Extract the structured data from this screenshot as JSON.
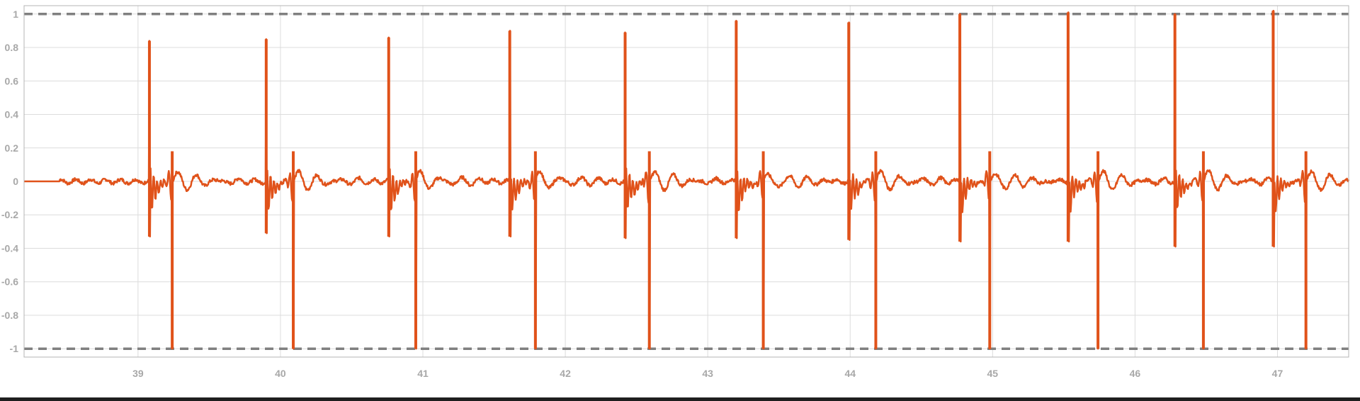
{
  "chart_data": {
    "type": "line",
    "title": "",
    "xlabel": "",
    "ylabel": "",
    "xlim": [
      38.2,
      47.5
    ],
    "ylim": [
      -1.05,
      1.05
    ],
    "x_ticks": [
      39,
      40,
      41,
      42,
      43,
      44,
      45,
      46,
      47
    ],
    "y_ticks": [
      1,
      0.8,
      0.6,
      0.4,
      0.2,
      0,
      -0.2,
      -0.4,
      -0.6,
      -0.8,
      -1
    ],
    "x_tick_labels": [
      "39",
      "40",
      "41",
      "42",
      "43",
      "44",
      "45",
      "46",
      "47"
    ],
    "y_tick_labels": [
      "1",
      "0.8",
      "0.6",
      "0.4",
      "0.2",
      "0",
      "-0.2",
      "-0.4",
      "-0.6",
      "-0.8",
      "-1"
    ],
    "grid": true,
    "limit_lines": [
      1,
      -1
    ],
    "colors": {
      "series": "#e0521a",
      "limit": "#808080",
      "grid": "#dcdcdc",
      "tick_text": "#a8a8a8"
    },
    "series": [
      {
        "pulses": [
          {
            "x": 39.08,
            "peak": 0.84,
            "low": -0.33,
            "neg_x": 39.24
          },
          {
            "x": 39.9,
            "peak": 0.85,
            "low": -0.31,
            "neg_x": 40.09
          },
          {
            "x": 40.76,
            "peak": 0.86,
            "low": -0.33,
            "neg_x": 40.95
          },
          {
            "x": 41.61,
            "peak": 0.9,
            "low": -0.33,
            "neg_x": 41.79
          },
          {
            "x": 42.42,
            "peak": 0.89,
            "low": -0.34,
            "neg_x": 42.59
          },
          {
            "x": 43.2,
            "peak": 0.96,
            "low": -0.34,
            "neg_x": 43.39
          },
          {
            "x": 43.99,
            "peak": 0.95,
            "low": -0.35,
            "neg_x": 44.18
          },
          {
            "x": 44.77,
            "peak": 1.0,
            "low": -0.36,
            "neg_x": 44.98
          },
          {
            "x": 45.53,
            "peak": 1.01,
            "low": -0.36,
            "neg_x": 45.74
          },
          {
            "x": 46.28,
            "peak": 1.0,
            "low": -0.39,
            "neg_x": 46.48
          },
          {
            "x": 46.97,
            "peak": 1.02,
            "low": -0.39,
            "neg_x": 47.2
          }
        ],
        "neg_peak": -1.0
      }
    ]
  }
}
